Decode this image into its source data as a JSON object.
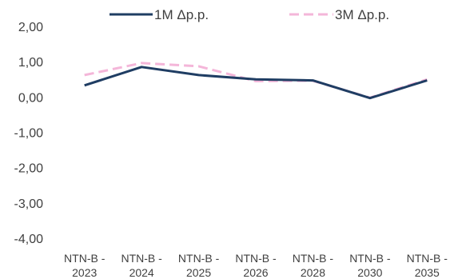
{
  "chart_data": {
    "type": "line",
    "categories": [
      [
        "NTN-B -",
        "2023"
      ],
      [
        "NTN-B -",
        "2024"
      ],
      [
        "NTN-B -",
        "2025"
      ],
      [
        "NTN-B -",
        "2026"
      ],
      [
        "NTN-B -",
        "2028"
      ],
      [
        "NTN-B -",
        "2030"
      ],
      [
        "NTN-B -",
        "2035"
      ]
    ],
    "series": [
      {
        "name": "1M Δp.p.",
        "color": "#1f3d63",
        "dash": "solid",
        "values": [
          0.33,
          0.85,
          0.62,
          0.5,
          0.47,
          -0.03,
          0.47
        ]
      },
      {
        "name": "3M Δp.p.",
        "color": "#f4b6d9",
        "dash": "dashed",
        "values": [
          0.62,
          0.96,
          0.87,
          0.45,
          0.46,
          -0.02,
          0.5
        ]
      }
    ],
    "y_ticks": [
      "2,00",
      "1,00",
      "0,00",
      "-1,00",
      "-2,00",
      "-3,00",
      "-4,00"
    ],
    "ylim": [
      -4,
      2
    ],
    "grid": false,
    "legend_position": "top"
  }
}
